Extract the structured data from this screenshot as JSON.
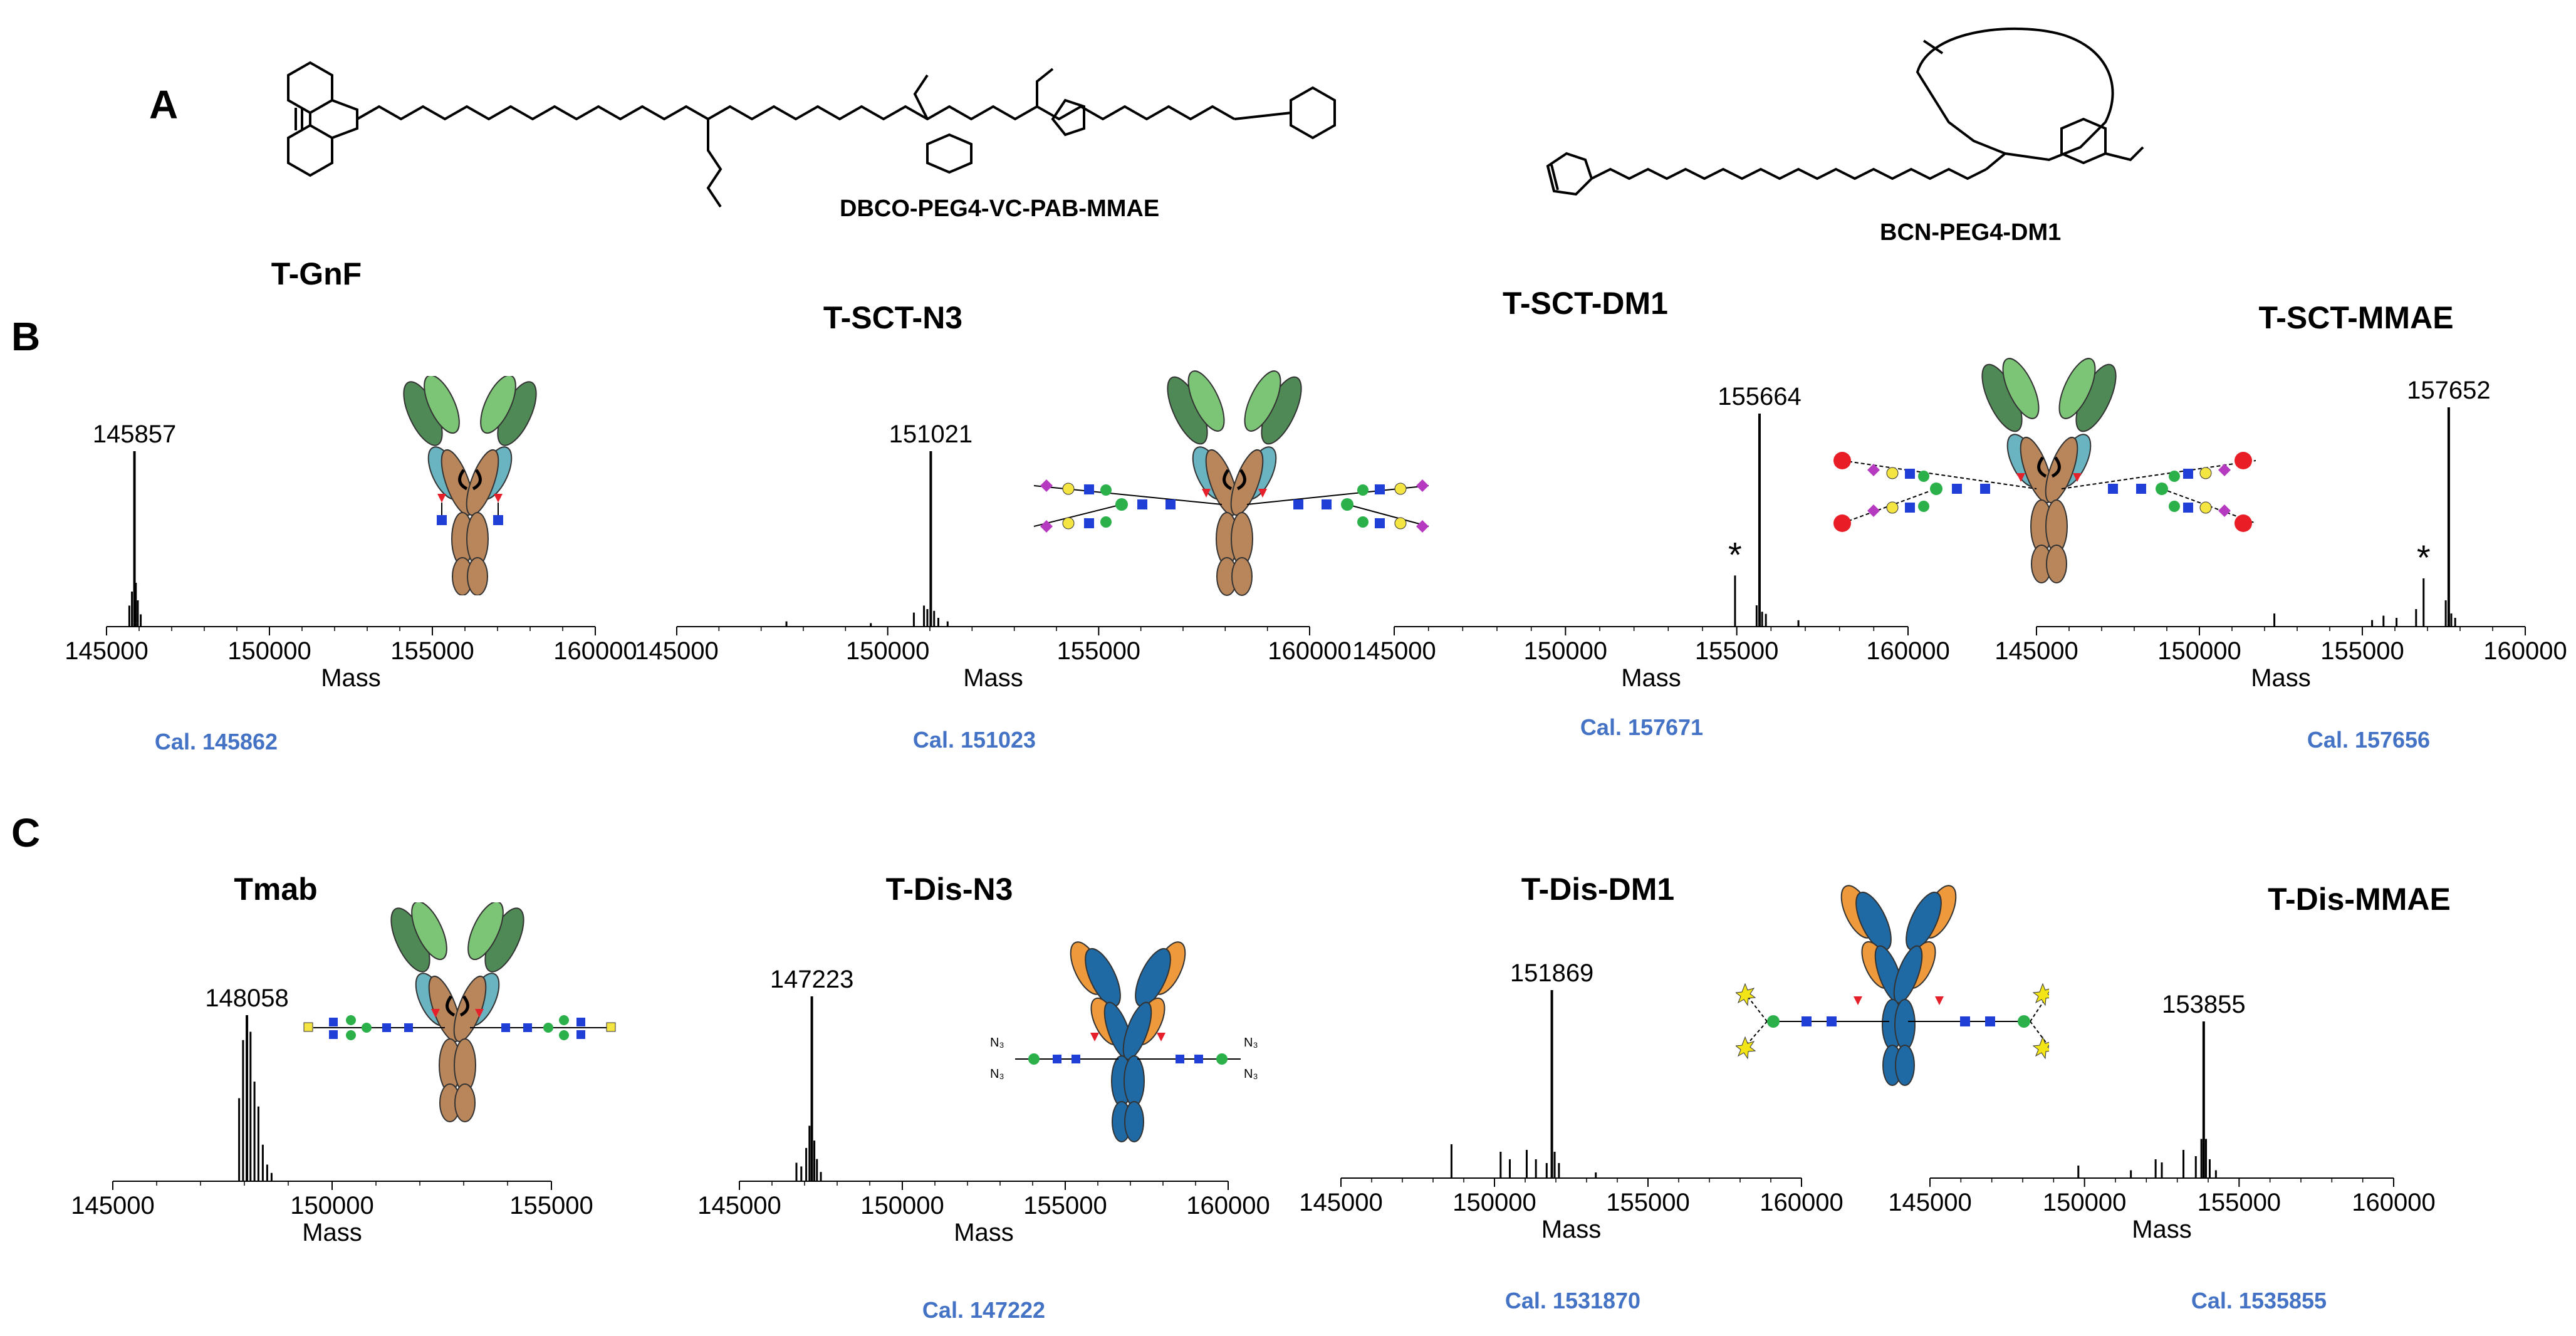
{
  "panels": {
    "a": "A",
    "b": "B",
    "c": "C"
  },
  "structures": {
    "left_name": "DBCO-PEG4-VC-PAB-MMAE",
    "right_name": "BCN-PEG4-DM1"
  },
  "axis_label": "Mass",
  "spectra": [
    {
      "title": "T-GnF",
      "peak_label": "145857",
      "calc_label": "Cal. 145862",
      "chart_data": {
        "type": "line",
        "xlabel": "Mass",
        "xlim": [
          145000,
          160000
        ],
        "ticks": [
          "145000",
          "150000",
          "155000",
          "160000"
        ],
        "peaks": [
          [
            145700,
            0.12
          ],
          [
            145780,
            0.2
          ],
          [
            145857,
            1.0
          ],
          [
            145900,
            0.25
          ],
          [
            145960,
            0.15
          ],
          [
            146050,
            0.07
          ]
        ]
      }
    },
    {
      "title": "T-SCT-N3",
      "peak_label": "151021",
      "calc_label": "Cal. 151023",
      "chart_data": {
        "type": "line",
        "xlabel": "Mass",
        "xlim": [
          145000,
          160000
        ],
        "ticks": [
          "145000",
          "150000",
          "155000",
          "160000"
        ],
        "peaks": [
          [
            147600,
            0.03
          ],
          [
            149600,
            0.02
          ],
          [
            150620,
            0.08
          ],
          [
            150860,
            0.12
          ],
          [
            150940,
            0.1
          ],
          [
            151021,
            1.0
          ],
          [
            151100,
            0.09
          ],
          [
            151200,
            0.05
          ],
          [
            151420,
            0.03
          ]
        ]
      }
    },
    {
      "title": "T-SCT-DM1",
      "peak_label": "155664",
      "calc_label": "Cal. 157671",
      "annotation": "*",
      "chart_data": {
        "type": "line",
        "xlabel": "Mass",
        "xlim": [
          145000,
          160000
        ],
        "ticks": [
          "145000",
          "150000",
          "155000",
          "160000"
        ],
        "peaks": [
          [
            154950,
            0.24
          ],
          [
            155580,
            0.1
          ],
          [
            155664,
            1.0
          ],
          [
            155740,
            0.07
          ],
          [
            155850,
            0.06
          ],
          [
            156800,
            0.03
          ]
        ],
        "annotation_x": 154950
      }
    },
    {
      "title": "T-SCT-MMAE",
      "peak_label": "157652",
      "calc_label": "Cal. 157656",
      "annotation": "*",
      "chart_data": {
        "type": "line",
        "xlabel": "Mass",
        "xlim": [
          145000,
          160000
        ],
        "ticks": [
          "145000",
          "150000",
          "155000",
          "160000"
        ],
        "peaks": [
          [
            152300,
            0.06
          ],
          [
            155300,
            0.03
          ],
          [
            155650,
            0.05
          ],
          [
            156050,
            0.04
          ],
          [
            156650,
            0.08
          ],
          [
            156880,
            0.22
          ],
          [
            157560,
            0.12
          ],
          [
            157652,
            1.0
          ],
          [
            157730,
            0.06
          ],
          [
            157850,
            0.04
          ]
        ],
        "annotation_x": 156880
      }
    },
    {
      "title": "Tmab",
      "peak_label": "148058",
      "calc_label": "",
      "chart_data": {
        "type": "line",
        "xlabel": "Mass",
        "xlim": [
          145000,
          155000
        ],
        "ticks": [
          "145000",
          "150000",
          "155000"
        ],
        "peaks": [
          [
            147880,
            0.5
          ],
          [
            147970,
            0.85
          ],
          [
            148058,
            1.0
          ],
          [
            148140,
            0.9
          ],
          [
            148230,
            0.6
          ],
          [
            148320,
            0.45
          ],
          [
            148420,
            0.22
          ],
          [
            148520,
            0.1
          ],
          [
            148620,
            0.05
          ]
        ]
      }
    },
    {
      "title": "T-Dis-N3",
      "peak_label": "147223",
      "calc_label": "Cal. 147222",
      "chart_data": {
        "type": "line",
        "xlabel": "Mass",
        "xlim": [
          145000,
          160000
        ],
        "ticks": [
          "145000",
          "150000",
          "155000",
          "160000"
        ],
        "peaks": [
          [
            146750,
            0.1
          ],
          [
            146900,
            0.08
          ],
          [
            147050,
            0.18
          ],
          [
            147150,
            0.3
          ],
          [
            147223,
            1.0
          ],
          [
            147300,
            0.22
          ],
          [
            147380,
            0.12
          ],
          [
            147500,
            0.05
          ]
        ]
      }
    },
    {
      "title": "T-Dis-DM1",
      "peak_label": "151869",
      "calc_label": "Cal. 1531870",
      "chart_data": {
        "type": "line",
        "xlabel": "Mass",
        "xlim": [
          145000,
          160000
        ],
        "ticks": [
          "145000",
          "150000",
          "155000",
          "160000"
        ],
        "peaks": [
          [
            148600,
            0.18
          ],
          [
            150200,
            0.14
          ],
          [
            150500,
            0.1
          ],
          [
            151050,
            0.15
          ],
          [
            151350,
            0.1
          ],
          [
            151700,
            0.08
          ],
          [
            151869,
            1.0
          ],
          [
            151960,
            0.14
          ],
          [
            152100,
            0.08
          ],
          [
            153300,
            0.03
          ]
        ]
      }
    },
    {
      "title": "T-Dis-MMAE",
      "peak_label": "153855",
      "calc_label": "Cal. 1535855",
      "chart_data": {
        "type": "line",
        "xlabel": "Mass",
        "xlim": [
          145000,
          160000
        ],
        "ticks": [
          "145000",
          "150000",
          "155000",
          "160000"
        ],
        "peaks": [
          [
            149800,
            0.08
          ],
          [
            151500,
            0.05
          ],
          [
            152300,
            0.12
          ],
          [
            152500,
            0.1
          ],
          [
            153200,
            0.18
          ],
          [
            153600,
            0.14
          ],
          [
            153780,
            0.25
          ],
          [
            153855,
            1.0
          ],
          [
            153930,
            0.25
          ],
          [
            154050,
            0.12
          ],
          [
            154250,
            0.05
          ]
        ]
      }
    }
  ],
  "colors": {
    "calc_text": "#4472c4",
    "heavy_chain": "#b9855a",
    "vh": "#4f8a56",
    "vl": "#7cc476",
    "cl": "#6ab3c1",
    "blue_chain": "#1f6aa5",
    "orange_chain": "#ee9a3c",
    "glcnac": "#1f3fd6",
    "mannose": "#2bb04a",
    "galactose": "#f5e542",
    "sialic": "#b53ac0",
    "fucose": "#e5202a",
    "payload": "#e81d25",
    "star": "#f2e416"
  }
}
